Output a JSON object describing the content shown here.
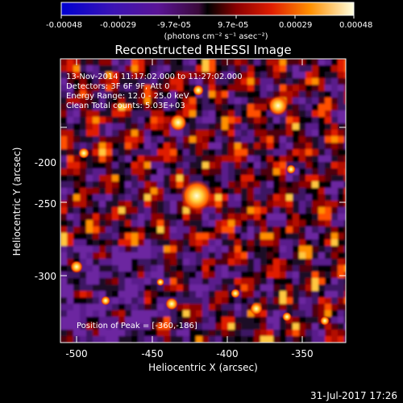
{
  "colorbar": {
    "ticks": [
      "-0.00048",
      "-0.00029",
      "-9.7e-05",
      "9.7e-05",
      "0.00029",
      "0.00048"
    ],
    "units": "(photons cm⁻² s⁻¹ asec⁻²)"
  },
  "title": "Reconstructed RHESSI Image",
  "info": {
    "line1": "13-Nov-2014 11:17:02.000 to 11:27:02.000",
    "line2": "Detectors: 3F 6F 9F, Att 0",
    "line3": "Energy Range: 12.0 - 25.0 keV",
    "line4": "Clean    Total counts: 5.03E+03",
    "peak": "Position of Peak = [-360,-186]"
  },
  "axes": {
    "xlabel": "Heliocentric X (arcsec)",
    "ylabel": "Heliocentric Y (arcsec)",
    "xticks": [
      "-500",
      "-450",
      "-400",
      "-350"
    ],
    "yticks": [
      "-200",
      "-250",
      "-300"
    ]
  },
  "footer": "31-Jul-2017 17:26"
}
